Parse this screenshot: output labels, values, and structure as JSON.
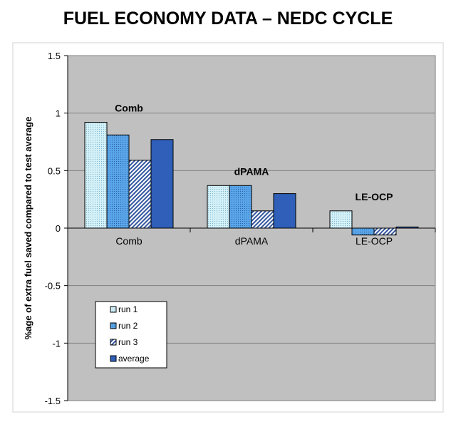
{
  "chart_data": {
    "type": "bar",
    "title": "FUEL ECONOMY DATA – NEDC CYCLE",
    "ylabel": "%age of extra fuel saved compared to test average",
    "xlabel": "",
    "categories": [
      "Comb",
      "dPAMA",
      "LE-OCP"
    ],
    "group_labels": [
      "Comb",
      "dPAMA",
      "LE-OCP"
    ],
    "ylim": [
      -1.5,
      1.5
    ],
    "yticks": [
      "1.5",
      "1",
      "0.5",
      "0",
      "-0.5",
      "-1",
      "-1.5"
    ],
    "grid": true,
    "legend_position": "bottom-left",
    "series": [
      {
        "name": "run 1",
        "values": [
          0.92,
          0.37,
          0.15
        ],
        "color": "#cdeef6",
        "pattern": "dots-light"
      },
      {
        "name": "run 2",
        "values": [
          0.81,
          0.37,
          -0.06
        ],
        "color": "#5aa0e6",
        "pattern": "dots-dark"
      },
      {
        "name": "run 3",
        "values": [
          0.59,
          0.15,
          -0.06
        ],
        "color": "#6f86c8",
        "pattern": "diagonal"
      },
      {
        "name": "average",
        "values": [
          0.77,
          0.3,
          0.01
        ],
        "color": "#2f5fb8",
        "pattern": "solid"
      }
    ],
    "plot_background": "#c0c0c0"
  }
}
